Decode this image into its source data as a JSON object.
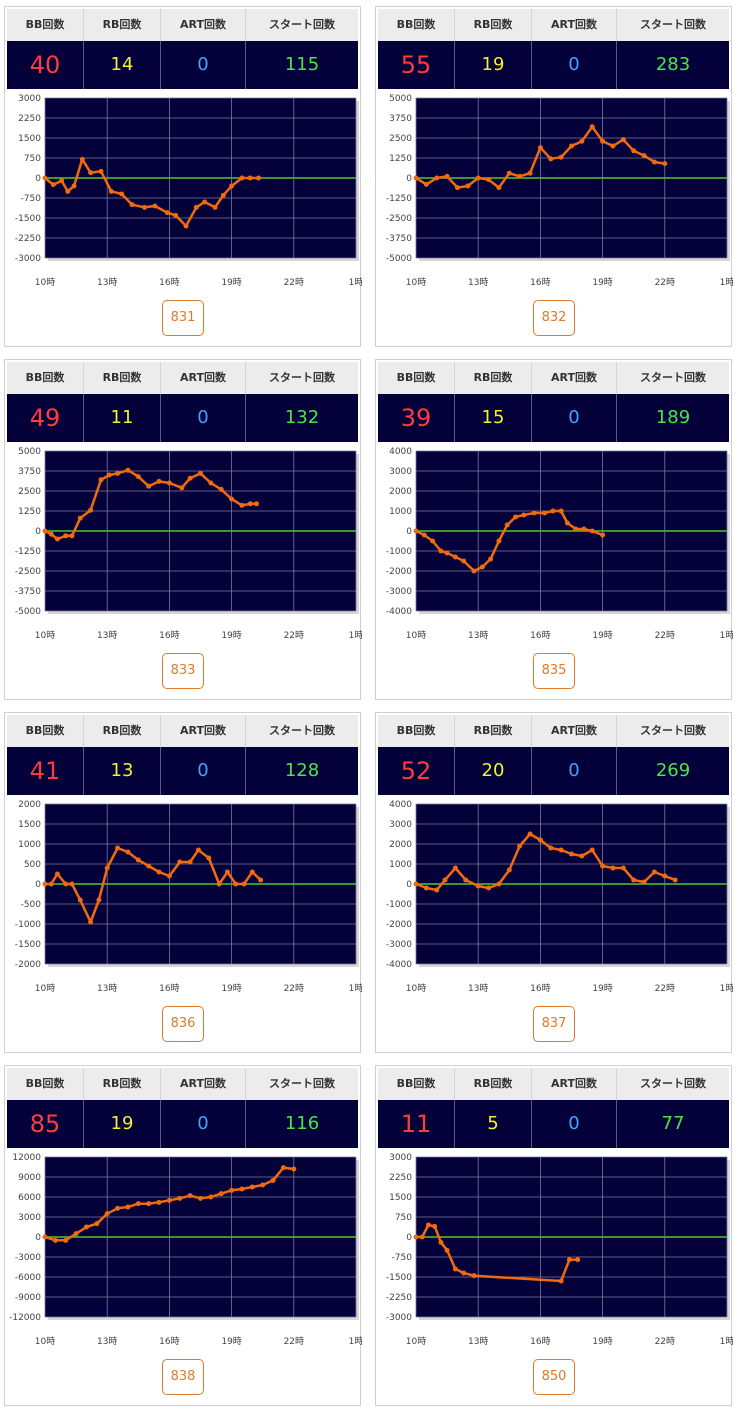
{
  "headers": {
    "bb": "BB回数",
    "rb": "RB回数",
    "art": "ART回数",
    "start": "スタート回数"
  },
  "colors": {
    "plot_bg": "#04003a",
    "series": "#f06b10",
    "zero_line": "#4ecb2a",
    "bb": "#ff3b3b",
    "rb": "#f1f12e",
    "art": "#3aa6ff",
    "start": "#48e648",
    "machine_border": "#e07a2a"
  },
  "cards": [
    {
      "machine": "831",
      "bb": "40",
      "rb": "14",
      "art": "0",
      "start": "115"
    },
    {
      "machine": "832",
      "bb": "55",
      "rb": "19",
      "art": "0",
      "start": "283"
    },
    {
      "machine": "833",
      "bb": "49",
      "rb": "11",
      "art": "0",
      "start": "132"
    },
    {
      "machine": "835",
      "bb": "39",
      "rb": "15",
      "art": "0",
      "start": "189"
    },
    {
      "machine": "836",
      "bb": "41",
      "rb": "13",
      "art": "0",
      "start": "128"
    },
    {
      "machine": "837",
      "bb": "52",
      "rb": "20",
      "art": "0",
      "start": "269"
    },
    {
      "machine": "838",
      "bb": "85",
      "rb": "19",
      "art": "0",
      "start": "116"
    },
    {
      "machine": "850",
      "bb": "11",
      "rb": "5",
      "art": "0",
      "start": "77"
    }
  ],
  "chart_data": [
    {
      "type": "line",
      "xlim": [
        10,
        25
      ],
      "x_ticks": [
        "10時",
        "13時",
        "16時",
        "19時",
        "22時",
        "1時"
      ],
      "ylim": [
        -3000,
        3000
      ],
      "y_ticks": [
        3000,
        2250,
        1500,
        750,
        0,
        -750,
        -1500,
        -2250,
        -3000
      ],
      "x": [
        10.0,
        10.4,
        10.8,
        11.1,
        11.4,
        11.8,
        12.2,
        12.7,
        13.2,
        13.7,
        14.2,
        14.8,
        15.3,
        15.9,
        16.3,
        16.8,
        17.3,
        17.7,
        18.2,
        18.6,
        19.0,
        19.5,
        19.9,
        20.3
      ],
      "y": [
        0,
        -250,
        -100,
        -500,
        -300,
        700,
        200,
        250,
        -500,
        -600,
        -1000,
        -1100,
        -1050,
        -1300,
        -1400,
        -1800,
        -1100,
        -900,
        -1100,
        -650,
        -300,
        0,
        0,
        0
      ]
    },
    {
      "type": "line",
      "xlim": [
        10,
        25
      ],
      "x_ticks": [
        "10時",
        "13時",
        "16時",
        "19時",
        "22時",
        "1時"
      ],
      "ylim": [
        -5000,
        5000
      ],
      "y_ticks": [
        5000,
        3750,
        2500,
        1250,
        0,
        -1250,
        -2500,
        -3750,
        -5000
      ],
      "x": [
        10.0,
        10.5,
        11.0,
        11.5,
        12.0,
        12.5,
        13.0,
        13.5,
        14.0,
        14.5,
        15.0,
        15.5,
        16.0,
        16.5,
        17.0,
        17.5,
        18.0,
        18.5,
        19.0,
        19.5,
        20.0,
        20.5,
        21.0,
        21.5,
        22.0
      ],
      "y": [
        0,
        -400,
        0,
        100,
        -600,
        -500,
        0,
        -100,
        -600,
        300,
        100,
        300,
        1900,
        1200,
        1300,
        2000,
        2300,
        3200,
        2300,
        2000,
        2400,
        1700,
        1400,
        1000,
        900
      ]
    },
    {
      "type": "line",
      "xlim": [
        10,
        25
      ],
      "x_ticks": [
        "10時",
        "13時",
        "16時",
        "19時",
        "22時",
        "1時"
      ],
      "ylim": [
        -5000,
        5000
      ],
      "y_ticks": [
        5000,
        3750,
        2500,
        1250,
        0,
        -1250,
        -2500,
        -3750,
        -5000
      ],
      "x": [
        10.0,
        10.3,
        10.6,
        11.0,
        11.3,
        11.7,
        12.2,
        12.7,
        13.1,
        13.5,
        14.0,
        14.5,
        15.0,
        15.5,
        16.0,
        16.6,
        17.0,
        17.5,
        18.0,
        18.5,
        19.0,
        19.5,
        19.9,
        20.2
      ],
      "y": [
        0,
        -200,
        -500,
        -300,
        -300,
        800,
        1300,
        3200,
        3500,
        3600,
        3800,
        3400,
        2800,
        3100,
        3000,
        2700,
        3300,
        3600,
        3000,
        2600,
        2000,
        1600,
        1700,
        1700
      ]
    },
    {
      "type": "line",
      "xlim": [
        10,
        25
      ],
      "x_ticks": [
        "10時",
        "13時",
        "16時",
        "19時",
        "22時",
        "1時"
      ],
      "ylim": [
        -4000,
        4000
      ],
      "y_ticks": [
        4000,
        3000,
        2000,
        1000,
        0,
        -1000,
        -2000,
        -3000,
        -4000
      ],
      "x": [
        10.0,
        10.4,
        10.8,
        11.2,
        11.5,
        11.9,
        12.3,
        12.8,
        13.2,
        13.6,
        14.0,
        14.4,
        14.8,
        15.2,
        15.7,
        16.2,
        16.6,
        17.0,
        17.3,
        17.7,
        18.1,
        18.5,
        19.0
      ],
      "y": [
        0,
        -200,
        -500,
        -1000,
        -1100,
        -1300,
        -1500,
        -2000,
        -1800,
        -1400,
        -500,
        300,
        700,
        800,
        900,
        900,
        1000,
        1000,
        400,
        100,
        100,
        0,
        -200
      ]
    },
    {
      "type": "line",
      "xlim": [
        10,
        25
      ],
      "x_ticks": [
        "10時",
        "13時",
        "16時",
        "19時",
        "22時",
        "1時"
      ],
      "ylim": [
        -2000,
        2000
      ],
      "y_ticks": [
        2000,
        1500,
        1000,
        500,
        0,
        -500,
        -1000,
        -1500,
        -2000
      ],
      "x": [
        10.0,
        10.3,
        10.6,
        11.0,
        11.3,
        11.7,
        12.2,
        12.6,
        13.0,
        13.5,
        14.0,
        14.5,
        15.0,
        15.5,
        16.0,
        16.5,
        17.0,
        17.4,
        17.9,
        18.4,
        18.8,
        19.2,
        19.6,
        20.0,
        20.4
      ],
      "y": [
        0,
        0,
        250,
        0,
        0,
        -400,
        -950,
        -400,
        400,
        900,
        800,
        600,
        450,
        300,
        200,
        550,
        550,
        850,
        650,
        0,
        300,
        0,
        0,
        300,
        100
      ]
    },
    {
      "type": "line",
      "xlim": [
        10,
        25
      ],
      "x_ticks": [
        "10時",
        "13時",
        "16時",
        "19時",
        "22時",
        "1時"
      ],
      "ylim": [
        -4000,
        4000
      ],
      "y_ticks": [
        4000,
        3000,
        2000,
        1000,
        0,
        -1000,
        -2000,
        -3000,
        -4000
      ],
      "x": [
        10.0,
        10.5,
        11.0,
        11.4,
        11.9,
        12.4,
        13.0,
        13.5,
        14.0,
        14.5,
        15.0,
        15.5,
        16.0,
        16.5,
        17.0,
        17.5,
        18.0,
        18.5,
        19.0,
        19.5,
        20.0,
        20.5,
        21.0,
        21.5,
        22.0,
        22.5
      ],
      "y": [
        0,
        -200,
        -300,
        200,
        800,
        200,
        -100,
        -200,
        0,
        700,
        1900,
        2500,
        2200,
        1800,
        1700,
        1500,
        1400,
        1700,
        900,
        800,
        800,
        200,
        100,
        600,
        400,
        200
      ]
    },
    {
      "type": "line",
      "xlim": [
        10,
        25
      ],
      "x_ticks": [
        "10時",
        "13時",
        "16時",
        "19時",
        "22時",
        "1時"
      ],
      "ylim": [
        -12000,
        12000
      ],
      "y_ticks": [
        12000,
        9000,
        6000,
        3000,
        0,
        -3000,
        -6000,
        -9000,
        -12000
      ],
      "x": [
        10.0,
        10.5,
        11.0,
        11.5,
        12.0,
        12.5,
        13.0,
        13.5,
        14.0,
        14.5,
        15.0,
        15.5,
        16.0,
        16.5,
        17.0,
        17.5,
        18.0,
        18.5,
        19.0,
        19.5,
        20.0,
        20.5,
        21.0,
        21.5,
        22.0
      ],
      "y": [
        0,
        -500,
        -500,
        500,
        1500,
        2000,
        3500,
        4300,
        4500,
        5000,
        5000,
        5200,
        5500,
        5800,
        6200,
        5800,
        6000,
        6500,
        7000,
        7200,
        7500,
        7800,
        8500,
        10400,
        10200
      ]
    },
    {
      "type": "line",
      "xlim": [
        10,
        25
      ],
      "x_ticks": [
        "10時",
        "13時",
        "16時",
        "19時",
        "22時",
        "1時"
      ],
      "ylim": [
        -3000,
        3000
      ],
      "y_ticks": [
        3000,
        2250,
        1500,
        750,
        0,
        -750,
        -1500,
        -2250,
        -3000
      ],
      "x": [
        10.0,
        10.3,
        10.6,
        10.9,
        11.2,
        11.5,
        11.9,
        12.3,
        12.8,
        17.0,
        17.4,
        17.8
      ],
      "y": [
        0,
        0,
        450,
        400,
        -200,
        -500,
        -1200,
        -1350,
        -1450,
        -1650,
        -850,
        -850
      ]
    }
  ]
}
